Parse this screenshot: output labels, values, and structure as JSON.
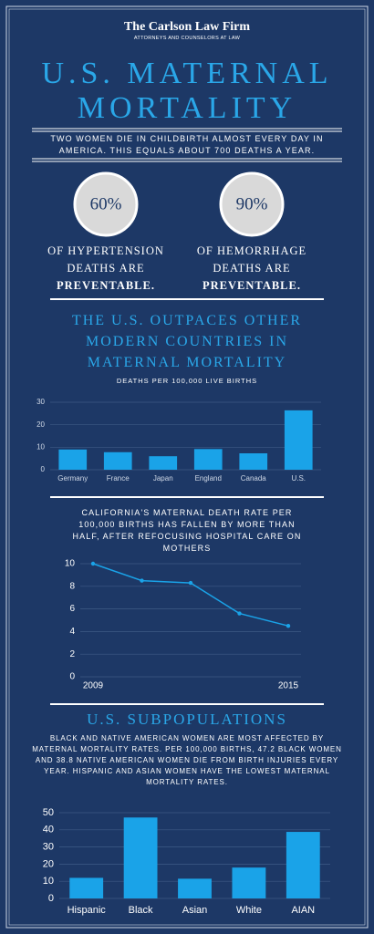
{
  "header": {
    "firm": "The Carlson Law Firm",
    "tagline": "ATTORNEYS AND COUNSELORS AT LAW"
  },
  "title": [
    "U.S. MATERNAL",
    "MORTALITY"
  ],
  "subtitle": "TWO WOMEN DIE IN CHILDBIRTH ALMOST EVERY DAY IN AMERICA. THIS EQUALS ABOUT 700 DEATHS A YEAR.",
  "stats": [
    {
      "value": "60%",
      "lines": [
        "OF HYPERTENSION",
        "DEATHS ARE"
      ],
      "emphasis": "PREVENTABLE."
    },
    {
      "value": "90%",
      "lines": [
        "OF HEMORRHAGE",
        "DEATHS ARE"
      ],
      "emphasis": "PREVENTABLE."
    }
  ],
  "section1": {
    "heading": "THE U.S. OUTPACES OTHER MODERN COUNTRIES IN MATERNAL MORTALITY"
  },
  "section2": {
    "caption": "CALIFORNIA'S MATERNAL DEATH RATE PER 100,000 BIRTHS HAS FALLEN BY MORE THAN HALF, AFTER REFOCUSING HOSPITAL CARE ON MOTHERS"
  },
  "section3": {
    "heading": "U.S. SUBPOPULATIONS",
    "text": "BLACK AND NATIVE AMERICAN WOMEN ARE MOST AFFECTED BY MATERNAL MORTALITY RATES. PER 100,000 BIRTHS, 47.2 BLACK WOMEN AND 38.8 NATIVE AMERICAN WOMEN DIE FROM BIRTH INJURIES EVERY YEAR. HISPANIC AND ASIAN WOMEN HAVE THE LOWEST MATERNAL MORTALITY RATES."
  },
  "chart_data": [
    {
      "type": "bar",
      "subtitle": "DEATHS PER 100,000 LIVE BIRTHS",
      "categories": [
        "Germany",
        "France",
        "Japan",
        "England",
        "Canada",
        "U.S."
      ],
      "values": [
        9,
        7.8,
        6,
        9.2,
        7.3,
        26.4
      ],
      "color": "#1aa3e8",
      "ylim": [
        0,
        30
      ],
      "yticks": [
        0,
        10,
        20,
        30
      ],
      "grid": true
    },
    {
      "type": "line",
      "x": [
        2009,
        2010.5,
        2012,
        2013.5,
        2015
      ],
      "series": [
        {
          "values": [
            10,
            8.5,
            8.3,
            5.6,
            4.5
          ],
          "color": "#1aa3e8"
        }
      ],
      "xlim": [
        2009,
        2015
      ],
      "xticks": [
        2009,
        2015
      ],
      "ylim": [
        0,
        10
      ],
      "yticks": [
        0,
        2,
        4,
        6,
        8,
        10
      ],
      "grid": true
    },
    {
      "type": "bar",
      "categories": [
        "Hispanic",
        "Black",
        "Asian",
        "White",
        "AIAN"
      ],
      "values": [
        12,
        47.2,
        11.5,
        18,
        38.8
      ],
      "color": "#1aa3e8",
      "ylim": [
        0,
        50
      ],
      "yticks": [
        0,
        10,
        20,
        30,
        40,
        50
      ],
      "grid": true
    }
  ]
}
